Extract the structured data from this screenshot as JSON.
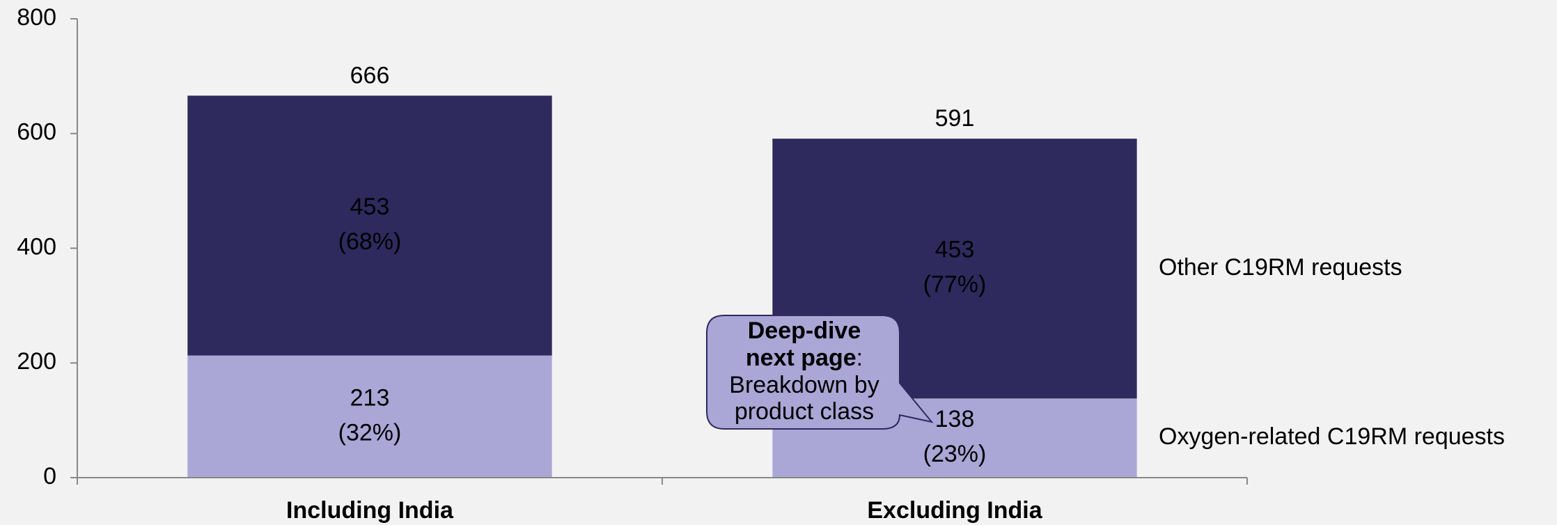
{
  "chart_data": {
    "type": "stacked_bar",
    "categories": [
      "Including India",
      "Excluding India"
    ],
    "series": [
      {
        "name": "Oxygen-related C19RM requests",
        "color": "#aaa6d6",
        "values": [
          213,
          138
        ],
        "share_labels": [
          "(32%)",
          "(23%)"
        ]
      },
      {
        "name": "Other C19RM requests",
        "color": "#2e2a5e",
        "values": [
          453,
          453
        ],
        "share_labels": [
          "(68%)",
          "(77%)"
        ]
      }
    ],
    "totals": [
      666,
      591
    ],
    "ylim": [
      0,
      800
    ],
    "yticks": [
      0,
      200,
      400,
      600,
      800
    ],
    "callout": {
      "bold": [
        "Deep-dive",
        "next page"
      ],
      "text": [
        ":",
        "Breakdown by",
        "product class"
      ]
    }
  }
}
